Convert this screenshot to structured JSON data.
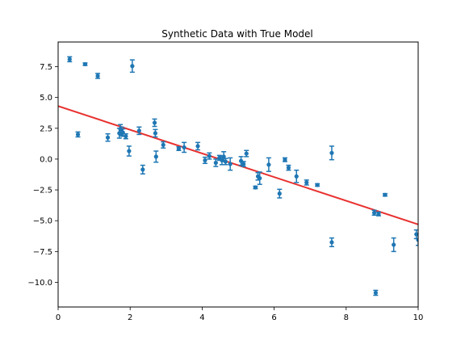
{
  "chart_data": {
    "type": "scatter",
    "title": "Synthetic Data with True Model",
    "xlabel": "",
    "ylabel": "",
    "xlim": [
      0,
      10
    ],
    "ylim": [
      -12,
      9.5
    ],
    "xticks": [
      0,
      2,
      4,
      6,
      8,
      10
    ],
    "yticks": [
      -10.0,
      -7.5,
      -5.0,
      -2.5,
      0.0,
      2.5,
      5.0,
      7.5
    ],
    "xtick_labels": [
      "0",
      "2",
      "4",
      "6",
      "8",
      "10"
    ],
    "ytick_labels": [
      "−10.0",
      "−7.5",
      "−5.0",
      "−2.5",
      "0.0",
      "2.5",
      "5.0",
      "7.5"
    ],
    "grid": false,
    "legend": "none",
    "line": {
      "color": "#e8312f",
      "x": [
        0,
        10
      ],
      "y": [
        4.3,
        -5.3
      ]
    },
    "points": {
      "color": "#1f77b4",
      "data": [
        {
          "x": 0.32,
          "y": 8.1,
          "err": 0.2
        },
        {
          "x": 0.55,
          "y": 2.0,
          "err": 0.2
        },
        {
          "x": 0.75,
          "y": 7.7,
          "err": 0.1
        },
        {
          "x": 1.1,
          "y": 6.75,
          "err": 0.2
        },
        {
          "x": 1.38,
          "y": 1.75,
          "err": 0.3
        },
        {
          "x": 1.7,
          "y": 2.1,
          "err": 0.4
        },
        {
          "x": 1.73,
          "y": 2.4,
          "err": 0.4
        },
        {
          "x": 1.76,
          "y": 2.25,
          "err": 0.35
        },
        {
          "x": 1.8,
          "y": 2.15,
          "err": 0.3
        },
        {
          "x": 1.88,
          "y": 1.85,
          "err": 0.2
        },
        {
          "x": 1.97,
          "y": 0.65,
          "err": 0.4
        },
        {
          "x": 2.06,
          "y": 7.55,
          "err": 0.5
        },
        {
          "x": 2.25,
          "y": 2.3,
          "err": 0.3
        },
        {
          "x": 2.35,
          "y": -0.85,
          "err": 0.35
        },
        {
          "x": 2.68,
          "y": 2.95,
          "err": 0.3
        },
        {
          "x": 2.7,
          "y": 2.1,
          "err": 0.3
        },
        {
          "x": 2.72,
          "y": 0.2,
          "err": 0.45
        },
        {
          "x": 2.92,
          "y": 1.15,
          "err": 0.25
        },
        {
          "x": 3.35,
          "y": 0.85,
          "err": 0.15
        },
        {
          "x": 3.5,
          "y": 0.95,
          "err": 0.4
        },
        {
          "x": 3.88,
          "y": 1.05,
          "err": 0.3
        },
        {
          "x": 4.08,
          "y": -0.1,
          "err": 0.25
        },
        {
          "x": 4.2,
          "y": 0.25,
          "err": 0.25
        },
        {
          "x": 4.38,
          "y": -0.3,
          "err": 0.3
        },
        {
          "x": 4.48,
          "y": 0.1,
          "err": 0.2
        },
        {
          "x": 4.55,
          "y": -0.1,
          "err": 0.35
        },
        {
          "x": 4.6,
          "y": 0.2,
          "err": 0.4
        },
        {
          "x": 4.65,
          "y": -0.2,
          "err": 0.25
        },
        {
          "x": 4.78,
          "y": -0.4,
          "err": 0.5
        },
        {
          "x": 5.08,
          "y": -0.15,
          "err": 0.35
        },
        {
          "x": 5.15,
          "y": -0.4,
          "err": 0.2
        },
        {
          "x": 5.23,
          "y": 0.45,
          "err": 0.25
        },
        {
          "x": 5.48,
          "y": -2.3,
          "err": 0.1
        },
        {
          "x": 5.55,
          "y": -1.4,
          "err": 0.3
        },
        {
          "x": 5.6,
          "y": -1.55,
          "err": 0.5
        },
        {
          "x": 5.85,
          "y": -0.45,
          "err": 0.55
        },
        {
          "x": 6.15,
          "y": -2.8,
          "err": 0.35
        },
        {
          "x": 6.3,
          "y": -0.05,
          "err": 0.15
        },
        {
          "x": 6.4,
          "y": -0.7,
          "err": 0.2
        },
        {
          "x": 6.62,
          "y": -1.4,
          "err": 0.5
        },
        {
          "x": 6.9,
          "y": -1.9,
          "err": 0.2
        },
        {
          "x": 7.2,
          "y": -2.1,
          "err": 0.1
        },
        {
          "x": 7.6,
          "y": -6.75,
          "err": 0.35
        },
        {
          "x": 7.6,
          "y": 0.5,
          "err": 0.55
        },
        {
          "x": 8.78,
          "y": -4.35,
          "err": 0.2
        },
        {
          "x": 8.82,
          "y": -10.85,
          "err": 0.2
        },
        {
          "x": 8.9,
          "y": -4.45,
          "err": 0.15
        },
        {
          "x": 9.08,
          "y": -2.9,
          "err": 0.1
        },
        {
          "x": 9.32,
          "y": -6.95,
          "err": 0.55
        },
        {
          "x": 9.95,
          "y": -6.1,
          "err": 0.35
        },
        {
          "x": 10.0,
          "y": -6.55,
          "err": 0.45
        }
      ]
    }
  }
}
